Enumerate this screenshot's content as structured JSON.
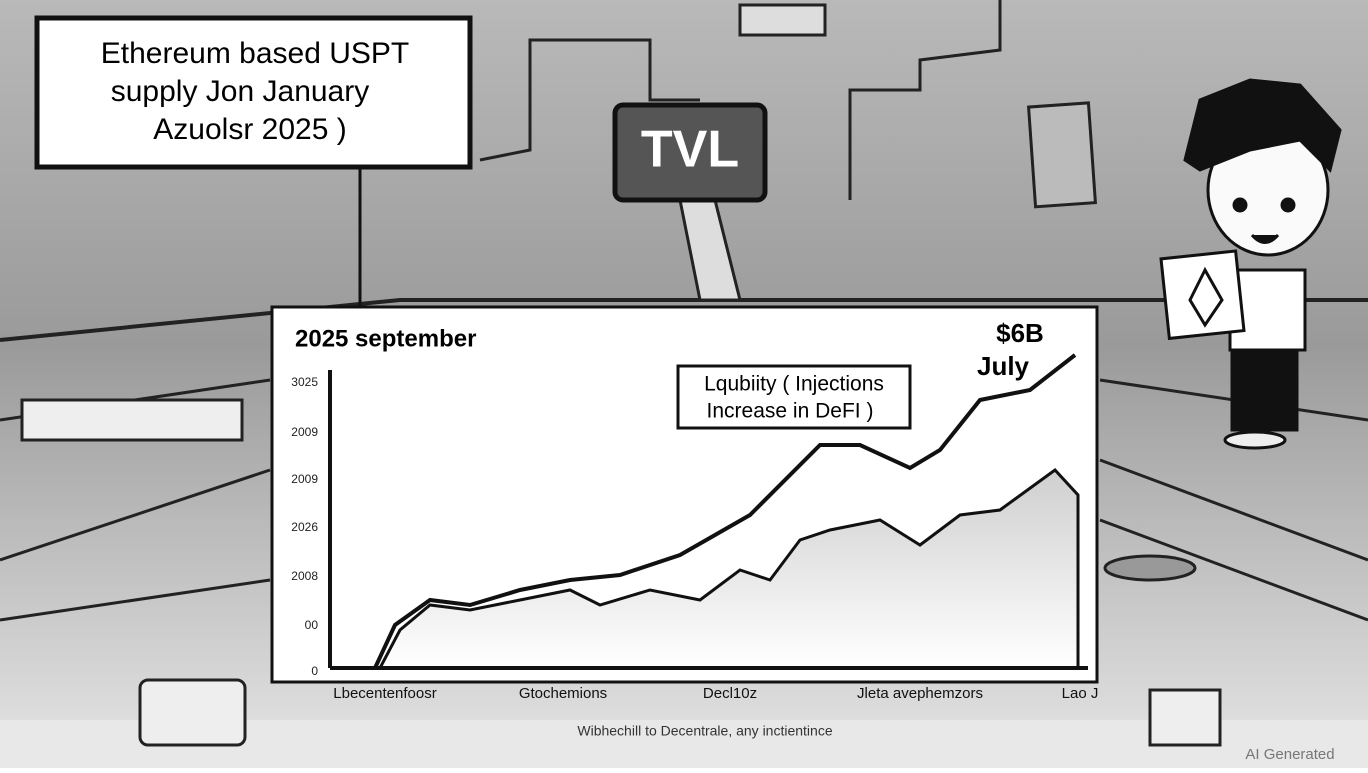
{
  "callout": {
    "lines": [
      "Ethereum based USPT",
      "supply  Jon January",
      "Azuolsr 2025  )"
    ]
  },
  "sign": "TVL",
  "chart": {
    "title": "2025 september",
    "peak_label": "$6B",
    "peak_month": "July",
    "annotation": [
      "Lqubiity ( Injections",
      "Increase in DeFI  )"
    ],
    "y_labels": [
      "3025",
      "2009",
      "2009",
      "2026",
      "2008",
      "00",
      "0"
    ],
    "x_labels": [
      "Lbecentenfoosr",
      "Gtochemions",
      "Decl10z",
      "Jleta avephemzors",
      "Lao J"
    ],
    "caption": "Wibhechill to Decentrale, any inctientince"
  },
  "watermark": "AI Generated"
}
